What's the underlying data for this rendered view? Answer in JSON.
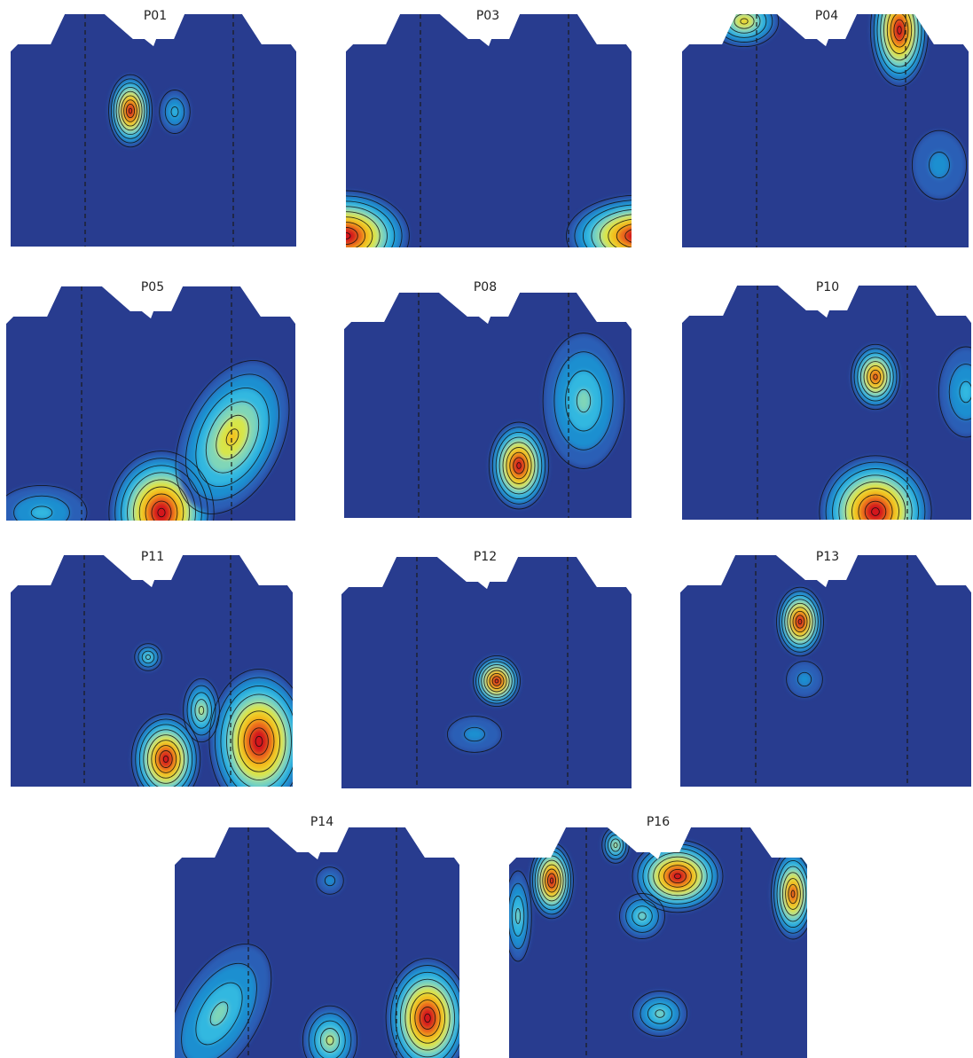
{
  "panels": [
    {
      "id": "P01",
      "label": "P01"
    },
    {
      "id": "P03",
      "label": "P03"
    },
    {
      "id": "P04",
      "label": "P04"
    },
    {
      "id": "P05",
      "label": "P05"
    },
    {
      "id": "P08",
      "label": "P08"
    },
    {
      "id": "P10",
      "label": "P10"
    },
    {
      "id": "P11",
      "label": "P11"
    },
    {
      "id": "P12",
      "label": "P12"
    },
    {
      "id": "P13",
      "label": "P13"
    },
    {
      "id": "P14",
      "label": "P14"
    },
    {
      "id": "P16",
      "label": "P16"
    }
  ],
  "colors": {
    "background_field": "#283c8f",
    "contour_line": "#111111",
    "dashed_line": "#1a1a1a",
    "colormap": [
      "#283c8f",
      "#2a5fb6",
      "#1e8fd0",
      "#33b8e0",
      "#7fd6b8",
      "#d7e64a",
      "#f3c21c",
      "#ec6a1c",
      "#d4141a"
    ]
  }
}
